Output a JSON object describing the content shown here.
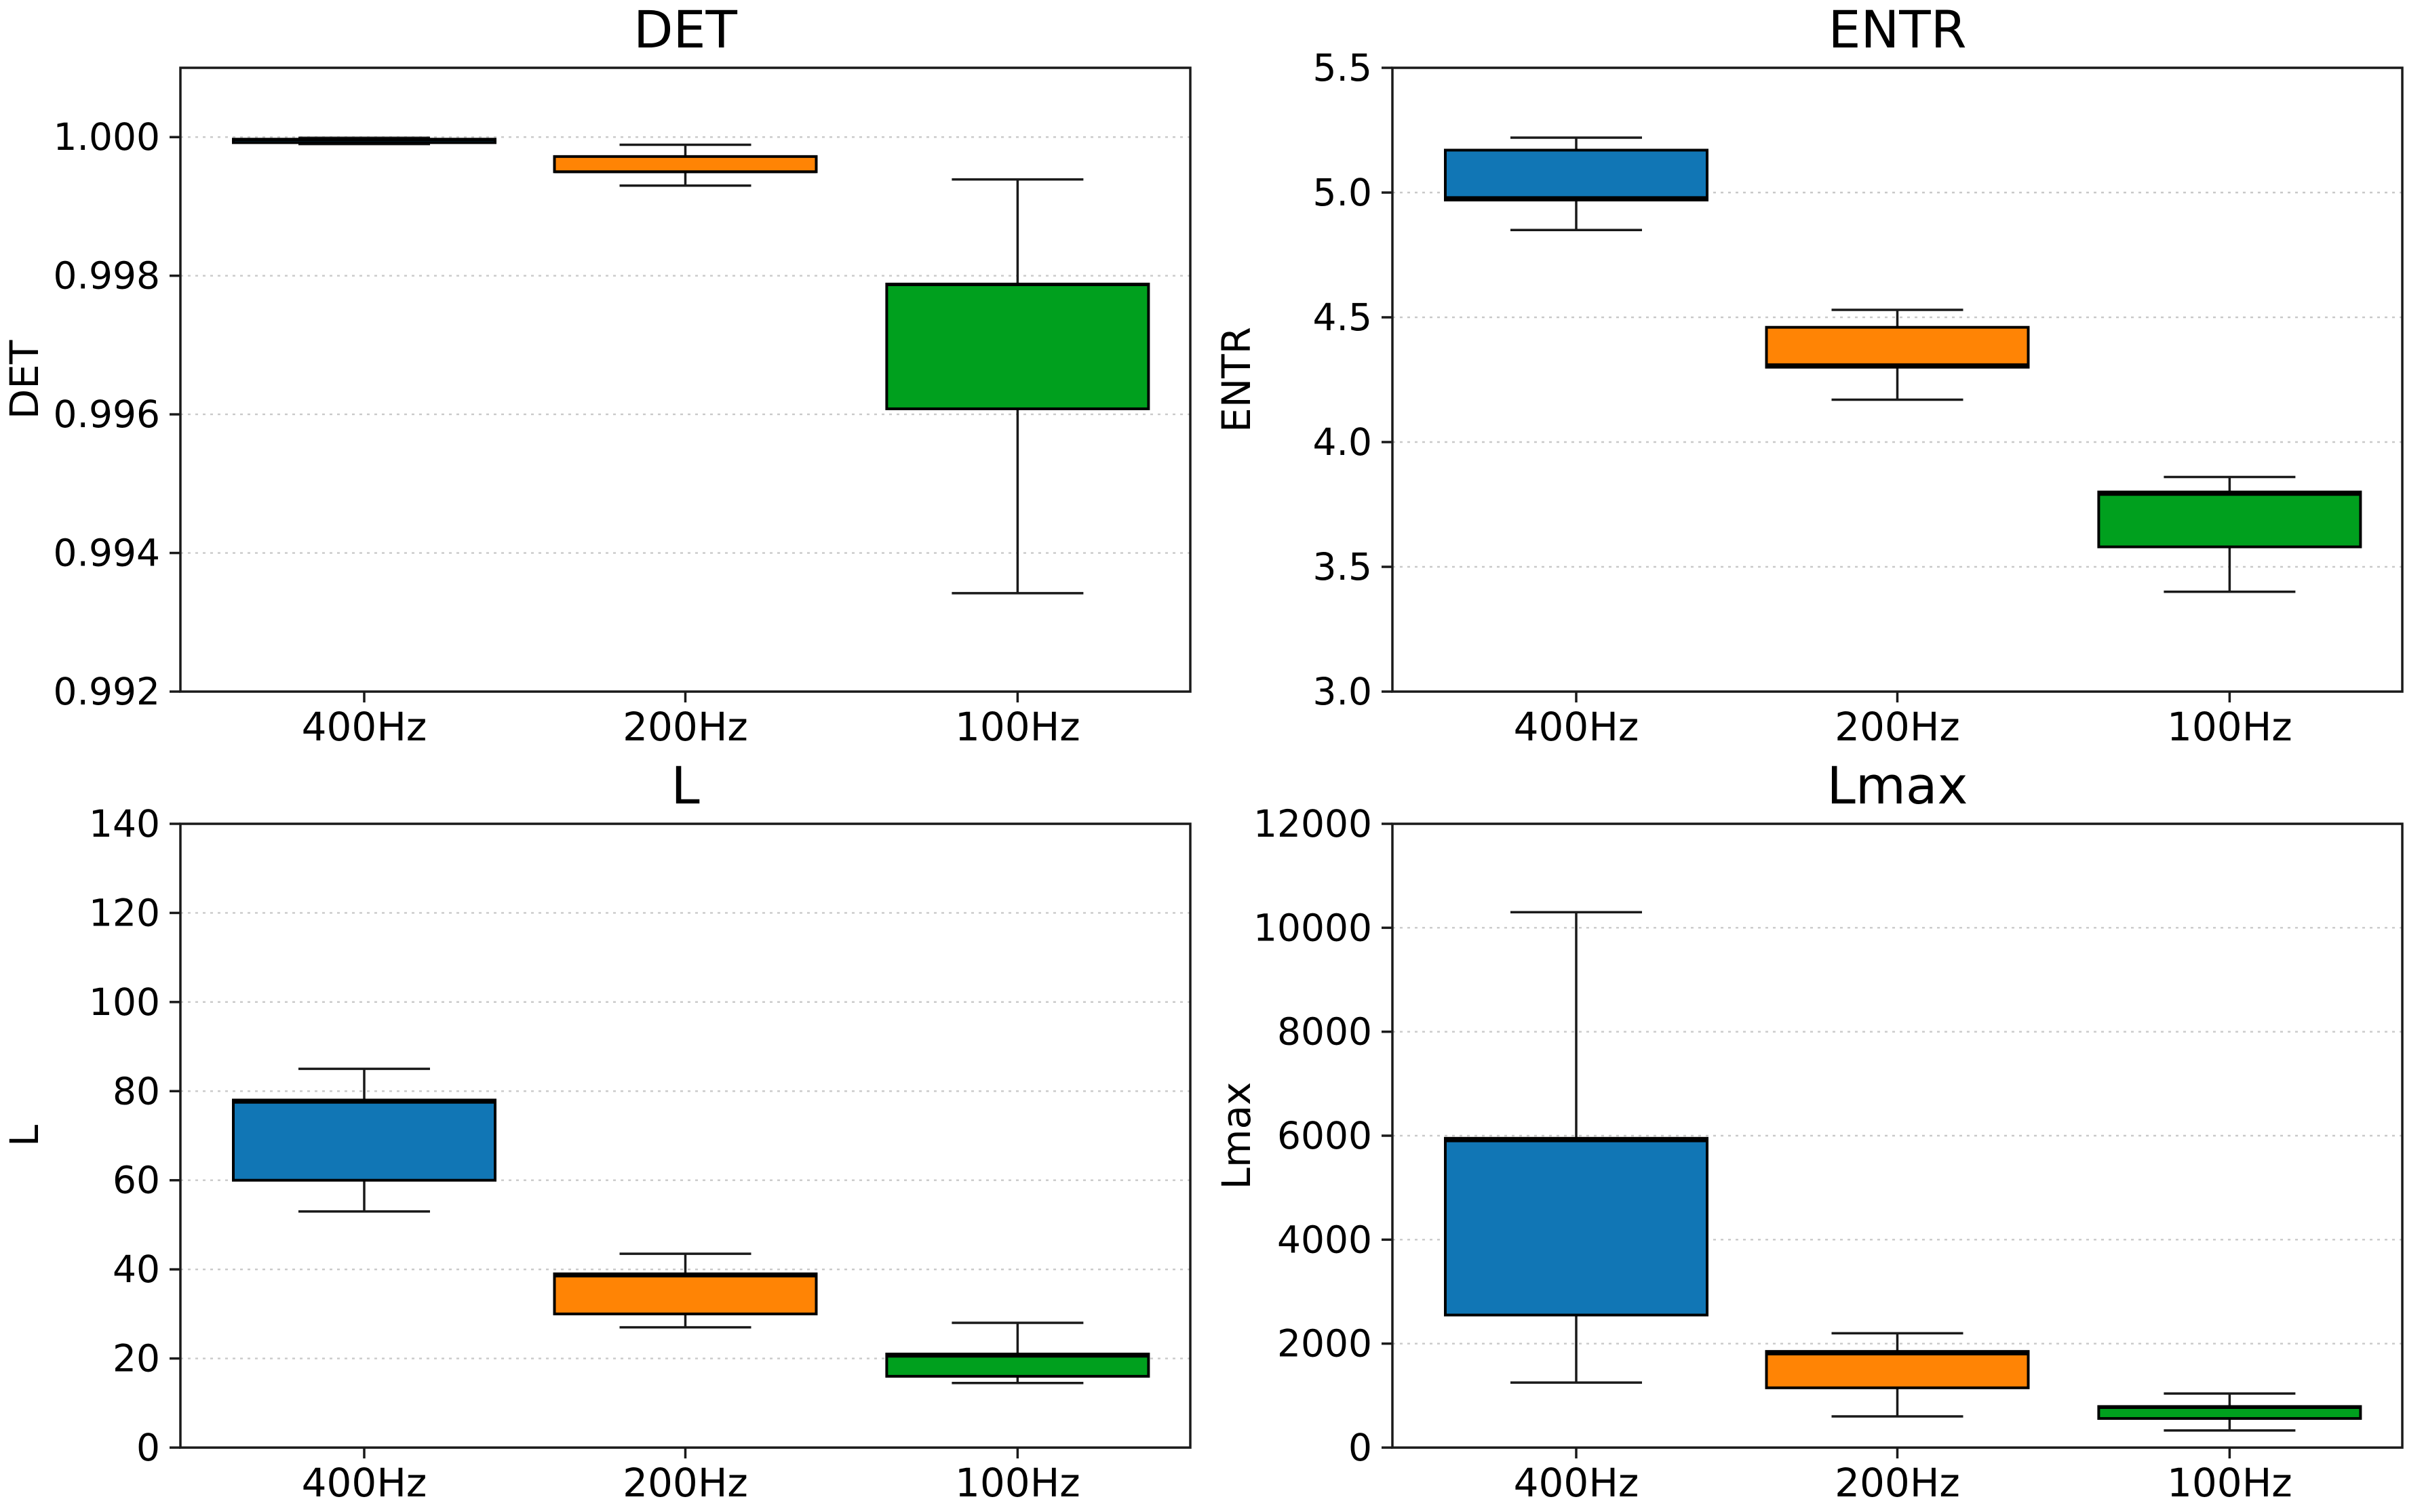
{
  "figure": {
    "background": "#ffffff",
    "colors": {
      "blue": "#1176b5",
      "orange": "#ff8405",
      "green": "#00a01e",
      "box_edge": "#000000",
      "whisker": "#1a1a1a",
      "frame": "#1a1a1a",
      "grid": "#c9c9c9",
      "text": "#000000"
    },
    "grid_rows": 2,
    "grid_cols": 2
  },
  "chart_data": [
    {
      "type": "box",
      "title": "DET",
      "ylabel": "DET",
      "xlabel": "",
      "categories": [
        "400Hz",
        "200Hz",
        "100Hz"
      ],
      "ylim": [
        0.992,
        1.001
      ],
      "grid": true,
      "legend": false,
      "yticks": [
        {
          "value": 1.0,
          "label": "1.000"
        },
        {
          "value": 0.998,
          "label": "0.998"
        },
        {
          "value": 0.996,
          "label": "0.996"
        },
        {
          "value": 0.994,
          "label": "0.994"
        },
        {
          "value": 0.992,
          "label": "0.992"
        }
      ],
      "series": [
        {
          "category": "400Hz",
          "color_key": "blue",
          "whisker_low": 0.9999,
          "q1": 0.99992,
          "median": 0.99996,
          "q3": 0.99997,
          "whisker_high": 0.99999
        },
        {
          "category": "200Hz",
          "color_key": "orange",
          "whisker_low": 0.9993,
          "q1": 0.9995,
          "median": 0.9995,
          "q3": 0.99972,
          "whisker_high": 0.99989
        },
        {
          "category": "100Hz",
          "color_key": "green",
          "whisker_low": 0.99342,
          "q1": 0.99608,
          "median": 0.99787,
          "q3": 0.99788,
          "whisker_high": 0.99939
        }
      ]
    },
    {
      "type": "box",
      "title": "ENTR",
      "ylabel": "ENTR",
      "xlabel": "",
      "categories": [
        "400Hz",
        "200Hz",
        "100Hz"
      ],
      "ylim": [
        3.0,
        5.5
      ],
      "grid": true,
      "legend": false,
      "yticks": [
        {
          "value": 5.5,
          "label": "5.5"
        },
        {
          "value": 5.0,
          "label": "5.0"
        },
        {
          "value": 4.5,
          "label": "4.5"
        },
        {
          "value": 4.0,
          "label": "4.0"
        },
        {
          "value": 3.5,
          "label": "3.5"
        },
        {
          "value": 3.0,
          "label": "3.0"
        }
      ],
      "series": [
        {
          "category": "400Hz",
          "color_key": "blue",
          "whisker_low": 4.85,
          "q1": 4.97,
          "median": 4.98,
          "q3": 5.17,
          "whisker_high": 5.22
        },
        {
          "category": "200Hz",
          "color_key": "orange",
          "whisker_low": 4.17,
          "q1": 4.3,
          "median": 4.31,
          "q3": 4.46,
          "whisker_high": 4.53
        },
        {
          "category": "100Hz",
          "color_key": "green",
          "whisker_low": 3.4,
          "q1": 3.58,
          "median": 3.79,
          "q3": 3.8,
          "whisker_high": 3.86
        }
      ]
    },
    {
      "type": "box",
      "title": "L",
      "ylabel": "L",
      "xlabel": "",
      "categories": [
        "400Hz",
        "200Hz",
        "100Hz"
      ],
      "ylim": [
        0,
        140
      ],
      "grid": true,
      "legend": false,
      "yticks": [
        {
          "value": 140,
          "label": "140"
        },
        {
          "value": 120,
          "label": "120"
        },
        {
          "value": 100,
          "label": "100"
        },
        {
          "value": 80,
          "label": "80"
        },
        {
          "value": 60,
          "label": "60"
        },
        {
          "value": 40,
          "label": "40"
        },
        {
          "value": 20,
          "label": "20"
        },
        {
          "value": 0,
          "label": "0"
        }
      ],
      "series": [
        {
          "category": "400Hz",
          "color_key": "blue",
          "whisker_low": 53.0,
          "q1": 60.0,
          "median": 77.5,
          "q3": 78.0,
          "whisker_high": 85.0
        },
        {
          "category": "200Hz",
          "color_key": "orange",
          "whisker_low": 27.0,
          "q1": 30.0,
          "median": 38.5,
          "q3": 39.0,
          "whisker_high": 43.5
        },
        {
          "category": "100Hz",
          "color_key": "green",
          "whisker_low": 14.5,
          "q1": 16.0,
          "median": 20.5,
          "q3": 21.0,
          "whisker_high": 28.0
        }
      ]
    },
    {
      "type": "box",
      "title": "Lmax",
      "ylabel": "Lmax",
      "xlabel": "",
      "categories": [
        "400Hz",
        "200Hz",
        "100Hz"
      ],
      "ylim": [
        0,
        12000
      ],
      "grid": true,
      "legend": false,
      "yticks": [
        {
          "value": 12000,
          "label": "12000"
        },
        {
          "value": 10000,
          "label": "10000"
        },
        {
          "value": 8000,
          "label": "8000"
        },
        {
          "value": 6000,
          "label": "6000"
        },
        {
          "value": 4000,
          "label": "4000"
        },
        {
          "value": 2000,
          "label": "2000"
        },
        {
          "value": 0,
          "label": "0"
        }
      ],
      "series": [
        {
          "category": "400Hz",
          "color_key": "blue",
          "whisker_low": 1250,
          "q1": 2550,
          "median": 5900,
          "q3": 5950,
          "whisker_high": 10300
        },
        {
          "category": "200Hz",
          "color_key": "orange",
          "whisker_low": 600,
          "q1": 1150,
          "median": 1800,
          "q3": 1850,
          "whisker_high": 2200
        },
        {
          "category": "100Hz",
          "color_key": "green",
          "whisker_low": 330,
          "q1": 560,
          "median": 770,
          "q3": 790,
          "whisker_high": 1040
        }
      ]
    }
  ]
}
